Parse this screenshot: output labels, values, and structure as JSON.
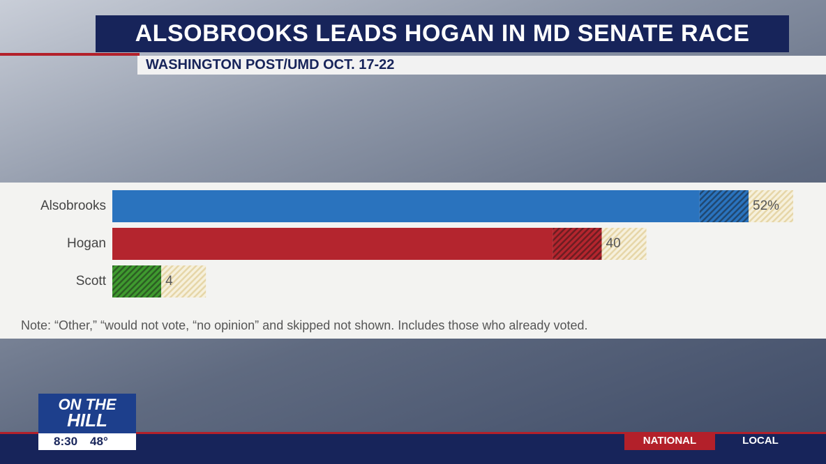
{
  "chart_data": {
    "type": "bar",
    "orientation": "horizontal",
    "title": "ALSOBROOKS LEADS HOGAN IN MD SENATE RACE",
    "subtitle": "WASHINGTON POST/UMD OCT. 17-22",
    "categories": [
      "Alsobrooks",
      "Hogan",
      "Scott"
    ],
    "colors": [
      "#2a73be",
      "#b4252e",
      "#3f9a2f"
    ],
    "series": [
      {
        "pattern": "solid",
        "values": [
          48,
          36,
          0
        ]
      },
      {
        "pattern": "hatched",
        "values": [
          4,
          4,
          4
        ]
      }
    ],
    "values": [
      52,
      40,
      4
    ],
    "value_labels": [
      "52%",
      "40",
      "4"
    ],
    "xlim": [
      0,
      52
    ],
    "note": "Note: “Other,” “would not vote, “no opinion” and skipped not shown. Includes those who already voted."
  },
  "broadcast": {
    "logo": [
      "ON THE",
      "HILL"
    ],
    "time": "8:30",
    "temperature": "48°",
    "nav": [
      "NATIONAL",
      "LOCAL"
    ]
  }
}
